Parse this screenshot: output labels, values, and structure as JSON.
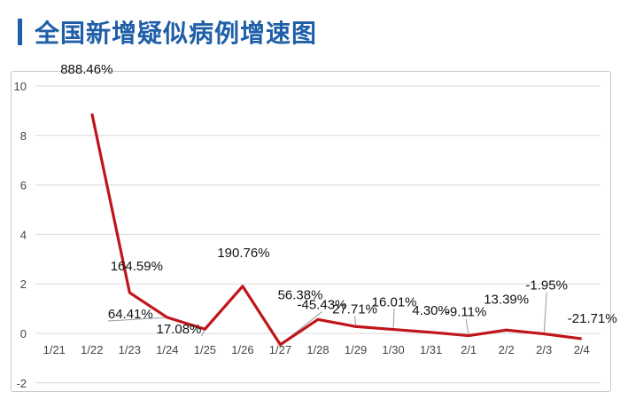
{
  "header": {
    "title": "全国新增疑似病例增速图"
  },
  "colors": {
    "line": "#c0151b",
    "grid": "#d9d9d9",
    "title": "#1f5fa8",
    "leader": "#9a9a9a"
  },
  "chart_data": {
    "type": "line",
    "title": "",
    "xlabel": "",
    "ylabel": "",
    "categories": [
      "1/21",
      "1/22",
      "1/23",
      "1/24",
      "1/25",
      "1/26",
      "1/27",
      "1/28",
      "1/29",
      "1/30",
      "1/31",
      "2/1",
      "2/2",
      "2/3",
      "2/4"
    ],
    "y_ticks": [
      "10",
      "8",
      "6",
      "4",
      "2",
      "0",
      "-2"
    ],
    "ylim": [
      -2,
      10
    ],
    "grid": true,
    "legend": "none",
    "series": [
      {
        "values": [
          null,
          8.8846,
          1.6459,
          0.6441,
          0.1708,
          1.9076,
          -0.4543,
          0.5638,
          0.2771,
          0.1601,
          0.043,
          -0.0911,
          0.1339,
          -0.0195,
          -0.2171
        ],
        "labels": [
          null,
          "888.46%",
          "164.59%",
          "64.41%",
          "17.08%",
          "190.76%",
          "-45.43%",
          "56.38%",
          "27.71%",
          "16.01%",
          "4.30%",
          "-9.11%",
          "13.39%",
          "-1.95%",
          "-21.71%"
        ]
      }
    ]
  }
}
